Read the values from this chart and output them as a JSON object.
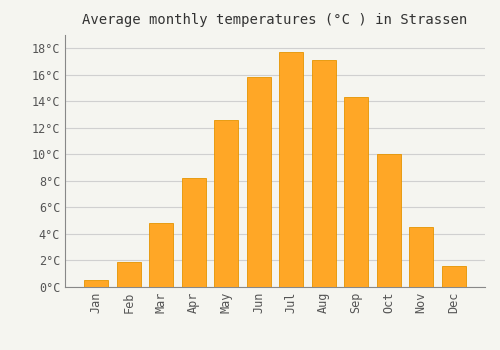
{
  "months": [
    "Jan",
    "Feb",
    "Mar",
    "Apr",
    "May",
    "Jun",
    "Jul",
    "Aug",
    "Sep",
    "Oct",
    "Nov",
    "Dec"
  ],
  "temperatures": [
    0.5,
    1.9,
    4.8,
    8.2,
    12.6,
    15.8,
    17.7,
    17.1,
    14.3,
    10.0,
    4.5,
    1.6
  ],
  "bar_color": "#FFA726",
  "bar_edge_color": "#E59400",
  "title": "Average monthly temperatures (°C ) in Strassen",
  "ylim": [
    0,
    19
  ],
  "yticks": [
    0,
    2,
    4,
    6,
    8,
    10,
    12,
    14,
    16,
    18
  ],
  "ytick_labels": [
    "0°C",
    "2°C",
    "4°C",
    "6°C",
    "8°C",
    "10°C",
    "12°C",
    "14°C",
    "16°C",
    "18°C"
  ],
  "background_color": "#F5F5F0",
  "grid_color": "#D0D0D0",
  "title_fontsize": 10,
  "tick_fontsize": 8.5,
  "tick_font_family": "monospace",
  "bar_width": 0.75
}
